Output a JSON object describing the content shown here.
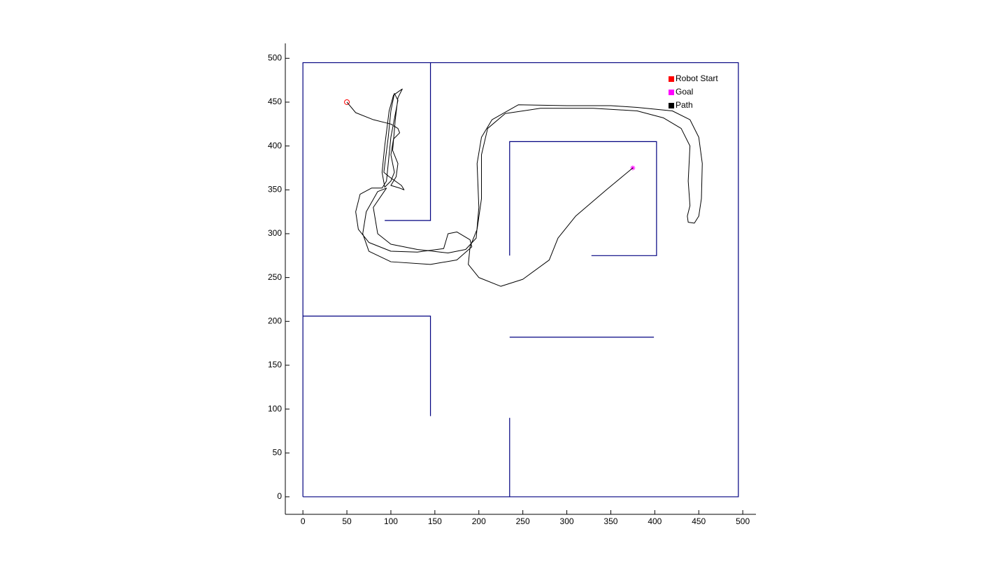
{
  "chart_data": {
    "type": "line",
    "xlim": [
      -20,
      515
    ],
    "ylim": [
      -20,
      517
    ],
    "xticks": [
      0,
      50,
      100,
      150,
      200,
      250,
      300,
      350,
      400,
      450,
      500
    ],
    "yticks": [
      0,
      50,
      100,
      150,
      200,
      250,
      300,
      350,
      400,
      450,
      500
    ],
    "legend": "upper right",
    "walls": {
      "color": "#000080",
      "lines": [
        {
          "x": [
            0,
            495,
            495,
            0,
            0
          ],
          "y": [
            0,
            0,
            495,
            495,
            0
          ]
        },
        {
          "x": [
            145,
            145,
            93
          ],
          "y": [
            495,
            315,
            315
          ]
        },
        {
          "x": [
            0,
            145,
            145
          ],
          "y": [
            206,
            206,
            92
          ]
        },
        {
          "x": [
            235,
            235
          ],
          "y": [
            0,
            90
          ]
        },
        {
          "x": [
            235,
            399
          ],
          "y": [
            182,
            182
          ]
        },
        {
          "x": [
            235,
            235,
            402,
            402,
            328
          ],
          "y": [
            275,
            405,
            405,
            275,
            275
          ]
        }
      ]
    },
    "series": [
      {
        "name": "Robot Start",
        "color": "#ff0000",
        "marker": "circle",
        "x": [
          50
        ],
        "values": [
          450
        ]
      },
      {
        "name": "Goal",
        "color": "#ff00ff",
        "marker": "asterisk",
        "x": [
          375
        ],
        "values": [
          375
        ]
      },
      {
        "name": "Path",
        "color": "#000000",
        "marker": "none",
        "x": [
          50,
          60,
          80,
          100,
          108,
          110,
          103,
          100,
          104,
          100,
          93,
          90,
          93,
          98,
          103,
          110,
          113,
          108,
          105,
          102,
          108,
          106,
          100,
          110,
          115,
          112,
          98,
          92,
          97,
          100,
          104,
          108,
          100,
          97,
          95,
          90,
          78,
          65,
          60,
          63,
          75,
          100,
          130,
          160,
          165,
          175,
          190,
          192,
          175,
          145,
          100,
          75,
          68,
          72,
          85,
          95,
          80,
          85,
          100,
          130,
          165,
          185,
          197,
          200,
          198,
          203,
          215,
          245,
          300,
          350,
          380,
          420,
          440,
          450,
          454,
          453,
          450,
          445,
          438,
          437,
          440,
          438,
          440,
          430,
          410,
          380,
          330,
          270,
          230,
          210,
          203,
          203,
          198,
          190,
          188,
          200,
          225,
          250,
          280,
          290,
          310,
          345,
          375
        ],
        "values": [
          450,
          438,
          430,
          425,
          420,
          415,
          408,
          390,
          370,
          360,
          353,
          370,
          400,
          440,
          458,
          463,
          465,
          455,
          430,
          395,
          380,
          365,
          355,
          352,
          350,
          355,
          365,
          370,
          410,
          440,
          460,
          452,
          410,
          380,
          360,
          352,
          352,
          345,
          325,
          305,
          290,
          280,
          279,
          283,
          300,
          302,
          293,
          285,
          270,
          265,
          268,
          280,
          300,
          325,
          348,
          352,
          330,
          300,
          288,
          282,
          278,
          282,
          295,
          330,
          380,
          410,
          430,
          447,
          446,
          446,
          444,
          440,
          430,
          410,
          380,
          340,
          320,
          312,
          313,
          320,
          332,
          360,
          400,
          420,
          432,
          440,
          443,
          443,
          437,
          420,
          390,
          340,
          305,
          285,
          265,
          250,
          240,
          248,
          270,
          295,
          320,
          350,
          375
        ]
      }
    ]
  }
}
